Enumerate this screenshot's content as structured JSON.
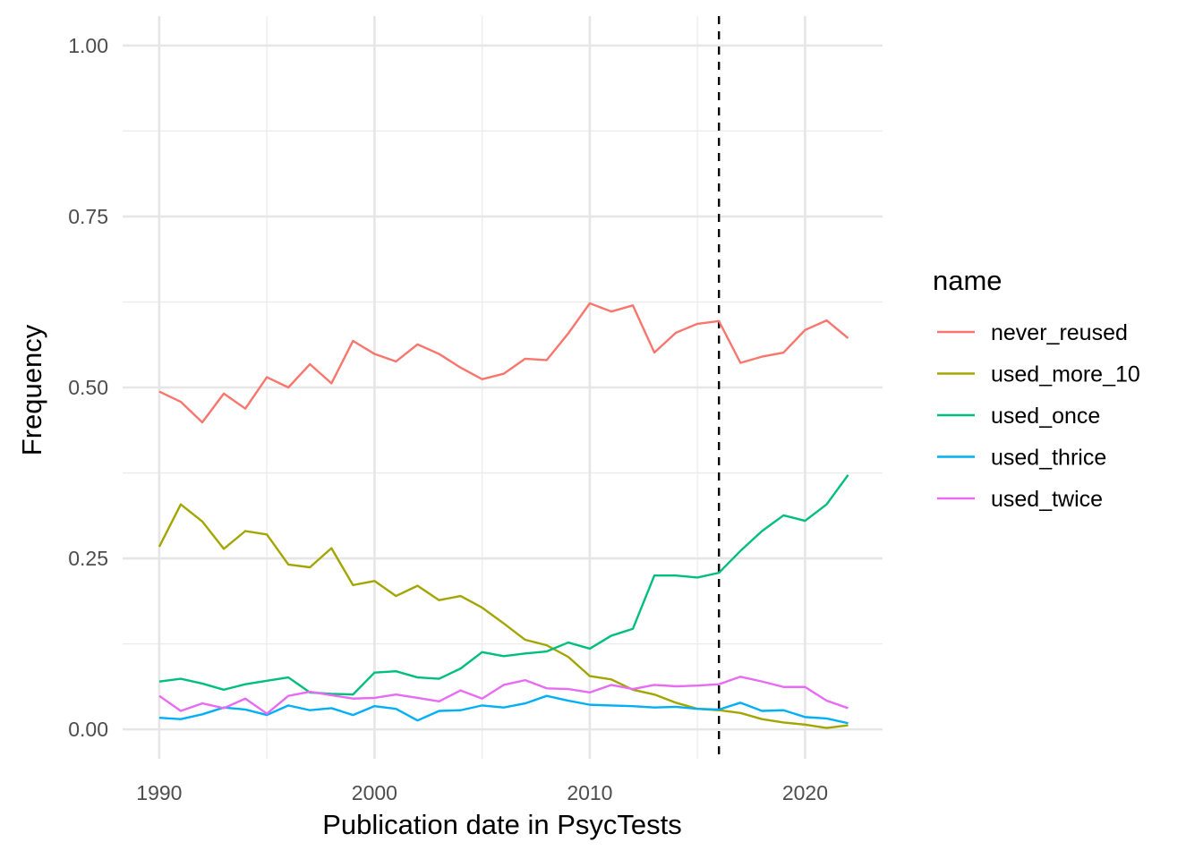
{
  "chart_data": {
    "type": "line",
    "xlabel": "Publication date in PsycTests",
    "ylabel": "Frequency",
    "xlim": [
      1988.3,
      2023.6
    ],
    "ylim": [
      -0.043,
      1.043
    ],
    "x_ticks": [
      1990,
      2000,
      2010,
      2020
    ],
    "x_tick_labels": [
      "1990",
      "2000",
      "2010",
      "2020"
    ],
    "x_minor_ticks": [
      1995,
      2005,
      2015
    ],
    "y_ticks": [
      0,
      0.25,
      0.5,
      0.75,
      1.0
    ],
    "y_tick_labels": [
      "0.00",
      "0.25",
      "0.50",
      "0.75",
      "1.00"
    ],
    "y_minor_ticks": [
      0.125,
      0.375,
      0.625,
      0.875
    ],
    "grid": true,
    "reference_line": {
      "x": 2016,
      "style": "dashed",
      "color": "#000000"
    },
    "legend": {
      "title": "name",
      "position": "right"
    },
    "x": [
      1990,
      1991,
      1992,
      1993,
      1994,
      1995,
      1996,
      1997,
      1998,
      1999,
      2000,
      2001,
      2002,
      2003,
      2004,
      2005,
      2006,
      2007,
      2008,
      2009,
      2010,
      2011,
      2012,
      2013,
      2014,
      2015,
      2016,
      2017,
      2018,
      2019,
      2020,
      2021,
      2022
    ],
    "series": [
      {
        "name": "never_reused",
        "color": "#F8766D",
        "values": [
          0.494,
          0.479,
          0.449,
          0.491,
          0.469,
          0.515,
          0.5,
          0.534,
          0.506,
          0.568,
          0.549,
          0.538,
          0.563,
          0.549,
          0.529,
          0.512,
          0.52,
          0.542,
          0.54,
          0.579,
          0.623,
          0.611,
          0.62,
          0.551,
          0.58,
          0.593,
          0.597,
          0.536,
          0.545,
          0.551,
          0.584,
          0.598,
          0.572
        ]
      },
      {
        "name": "used_more_10",
        "color": "#A3A500",
        "values": [
          0.267,
          0.329,
          0.304,
          0.264,
          0.29,
          0.285,
          0.241,
          0.237,
          0.265,
          0.211,
          0.217,
          0.195,
          0.21,
          0.189,
          0.195,
          0.178,
          0.155,
          0.131,
          0.123,
          0.106,
          0.078,
          0.073,
          0.058,
          0.051,
          0.039,
          0.03,
          0.028,
          0.024,
          0.015,
          0.01,
          0.007,
          0.002,
          0.006
        ]
      },
      {
        "name": "used_once",
        "color": "#00BF7D",
        "values": [
          0.07,
          0.074,
          0.067,
          0.058,
          0.066,
          0.071,
          0.076,
          0.054,
          0.052,
          0.051,
          0.083,
          0.085,
          0.076,
          0.074,
          0.089,
          0.113,
          0.107,
          0.111,
          0.114,
          0.127,
          0.118,
          0.137,
          0.147,
          0.225,
          0.225,
          0.222,
          0.229,
          0.261,
          0.29,
          0.313,
          0.305,
          0.329,
          0.372
        ]
      },
      {
        "name": "used_thrice",
        "color": "#00B0F6",
        "values": [
          0.017,
          0.015,
          0.022,
          0.032,
          0.029,
          0.021,
          0.035,
          0.028,
          0.031,
          0.021,
          0.034,
          0.03,
          0.013,
          0.027,
          0.028,
          0.035,
          0.032,
          0.038,
          0.049,
          0.042,
          0.036,
          0.035,
          0.034,
          0.032,
          0.033,
          0.03,
          0.029,
          0.039,
          0.027,
          0.028,
          0.018,
          0.016,
          0.009
        ]
      },
      {
        "name": "used_twice",
        "color": "#E76BF3",
        "values": [
          0.049,
          0.027,
          0.038,
          0.031,
          0.045,
          0.023,
          0.049,
          0.055,
          0.05,
          0.045,
          0.046,
          0.051,
          0.046,
          0.041,
          0.057,
          0.045,
          0.065,
          0.072,
          0.06,
          0.059,
          0.054,
          0.065,
          0.059,
          0.065,
          0.063,
          0.064,
          0.066,
          0.077,
          0.07,
          0.062,
          0.062,
          0.042,
          0.031
        ]
      }
    ]
  }
}
